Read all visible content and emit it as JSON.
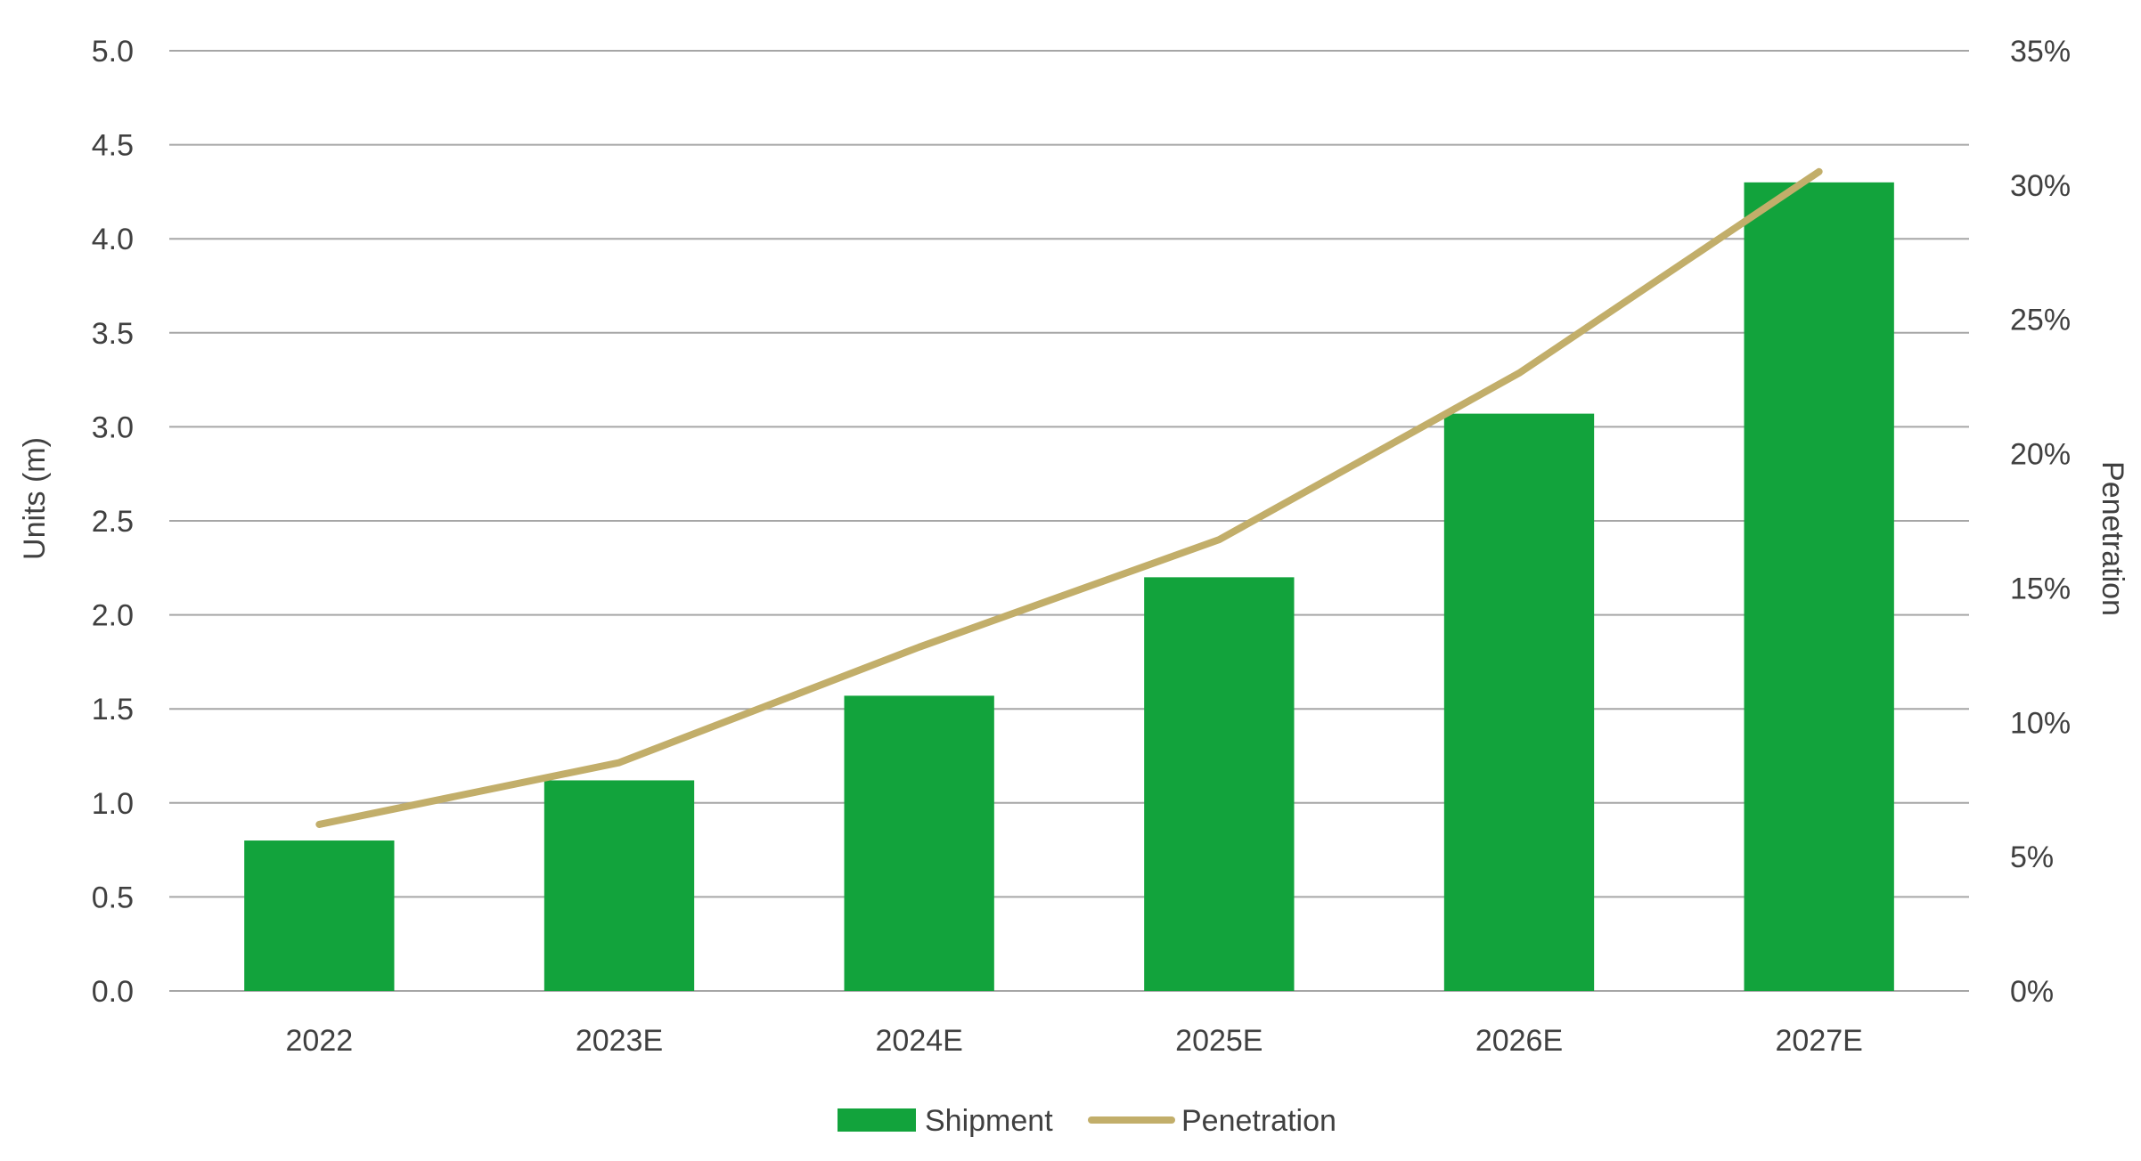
{
  "chart_data": {
    "type": "bar",
    "categories": [
      "2022",
      "2023E",
      "2024E",
      "2025E",
      "2026E",
      "2027E"
    ],
    "series": [
      {
        "name": "Shipment",
        "type": "bar",
        "axis": "left",
        "color": "#12A33C",
        "values": [
          0.8,
          1.12,
          1.57,
          2.2,
          3.07,
          4.3
        ]
      },
      {
        "name": "Penetration",
        "type": "line",
        "axis": "right",
        "color": "#C2AE6A",
        "values": [
          6.2,
          8.5,
          12.8,
          16.8,
          23.0,
          30.5
        ]
      }
    ],
    "ylabel": "Units (m)",
    "ylim": [
      0,
      5
    ],
    "yticks": [
      "0.0",
      "0.5",
      "1.0",
      "1.5",
      "2.0",
      "2.5",
      "3.0",
      "3.5",
      "4.0",
      "4.5",
      "5.0"
    ],
    "y2label": "Penetration",
    "y2lim": [
      0,
      35
    ],
    "y2ticks": [
      "0%",
      "5%",
      "10%",
      "15%",
      "20%",
      "25%",
      "30%",
      "35%"
    ],
    "grid": true,
    "legend": "bottom-center",
    "colors": {
      "gridline": "#A6A6A6",
      "text": "#404040"
    }
  }
}
